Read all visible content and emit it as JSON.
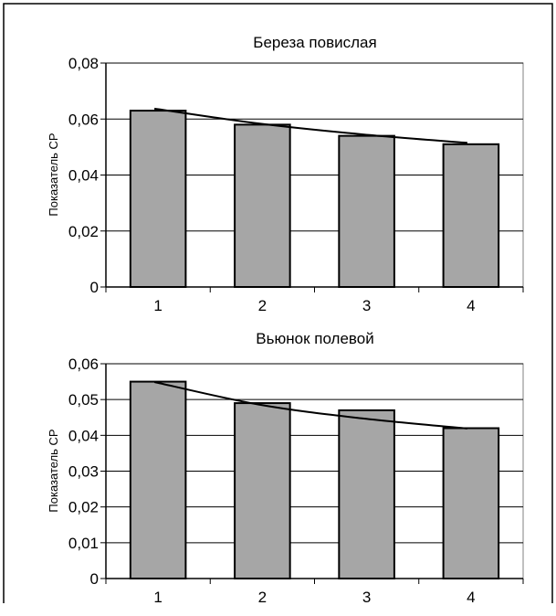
{
  "colors": {
    "bar_fill": "#a6a6a6",
    "line": "#000000",
    "grid": "#000000"
  },
  "chart_data": [
    {
      "type": "bar",
      "title": "Береза повислая",
      "ylabel": "Показатель СР",
      "xlabel": "",
      "categories": [
        "1",
        "2",
        "3",
        "4"
      ],
      "values": [
        0.063,
        0.058,
        0.054,
        0.051
      ],
      "trendline": [
        0.0637,
        0.0584,
        0.0545,
        0.0515
      ],
      "ylim": [
        0,
        0.08
      ],
      "yticks": [
        "0",
        "0,02",
        "0,04",
        "0,06",
        "0,08"
      ],
      "grid": true,
      "legend": "none"
    },
    {
      "type": "bar",
      "title": "Вьюнок полевой",
      "ylabel": "Показатель СР",
      "xlabel": "",
      "categories": [
        "1",
        "2",
        "3",
        "4"
      ],
      "values": [
        0.055,
        0.049,
        0.047,
        0.042
      ],
      "trendline": [
        0.0549,
        0.0486,
        0.0447,
        0.0419
      ],
      "ylim": [
        0,
        0.06
      ],
      "yticks": [
        "0",
        "0,01",
        "0,02",
        "0,03",
        "0,04",
        "0,05",
        "0,06"
      ],
      "grid": true,
      "legend": "none"
    }
  ]
}
